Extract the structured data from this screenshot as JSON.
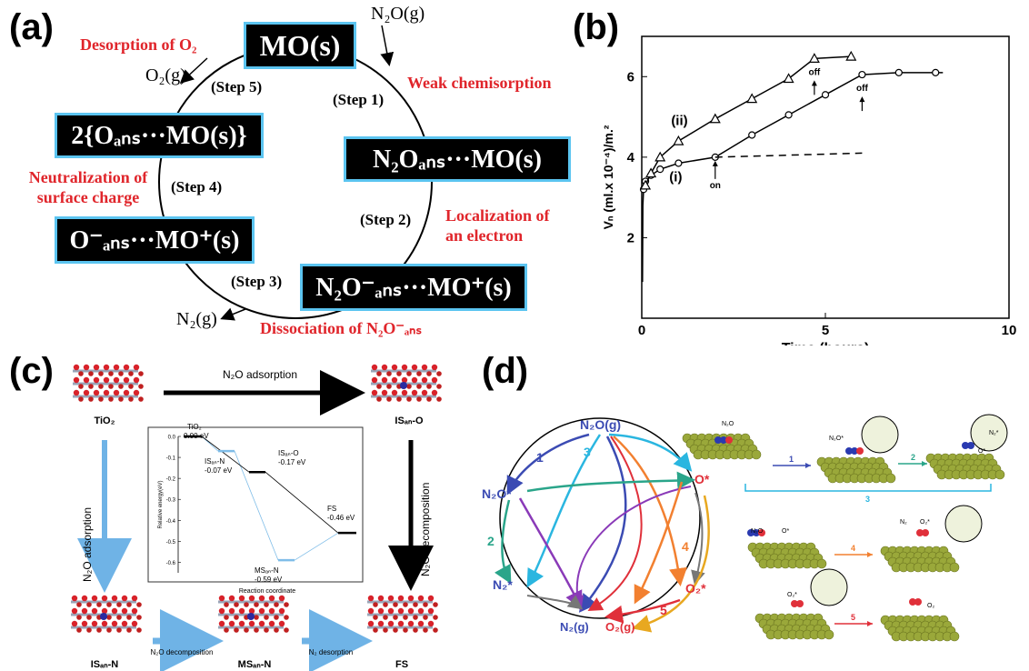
{
  "panels": {
    "a": {
      "label": "(a)",
      "center_box": "MO(s)",
      "box1": "N₂Oₐₙₛ···MO(s)",
      "box2": "N₂O⁻ₐₙₛ···MO⁺(s)",
      "box3": "O⁻ₐₙₛ···MO⁺(s)",
      "box4": "2{Oₐₙₛ···MO(s)}",
      "gas_n2o": "N₂O(g)",
      "gas_o2": "O₂(g)",
      "gas_n2": "N₂(g)",
      "steps": [
        "(Step 1)",
        "(Step 2)",
        "(Step 3)",
        "(Step 4)",
        "(Step 5)"
      ],
      "red_labels": {
        "desorption": "Desorption of O₂",
        "weak": "Weak chemisorption",
        "localization": "Localization of an electron",
        "dissociation": "Dissociation of N₂O⁻ₐₙₛ",
        "neutralization": "Neutralization of surface charge"
      }
    },
    "b": {
      "label": "(b)"
    },
    "c": {
      "label": "(c)",
      "top_arrow": "N₂O adsorption",
      "left_arrow": "N₂O adsorption",
      "right_arrow": "N₂O decomposition",
      "bottom_arrow1": "N₂O decomposition",
      "bottom_arrow2": "N₂ desorption",
      "structures": [
        "TiO₂",
        "ISₐₙ-O",
        "ISₐₙ-N",
        "MSₐₙ-N",
        "FS"
      ],
      "inset": {
        "ylabel": "Relative energy(eV)",
        "xlabel": "Reaction coordinate",
        "yticks": [
          "0.0",
          "-0.1",
          "-0.2",
          "-0.3",
          "-0.4",
          "-0.5",
          "-0.6"
        ],
        "levels": [
          {
            "name": "TiO₂",
            "energy": "0.00 eV",
            "value": 0.0
          },
          {
            "name": "ISₐₙ-N",
            "energy": "-0.07 eV",
            "value": -0.07
          },
          {
            "name": "ISₐₙ-O",
            "energy": "-0.17 eV",
            "value": -0.17
          },
          {
            "name": "MSₐₙ-N",
            "energy": "-0.59 eV",
            "value": -0.59
          },
          {
            "name": "FS",
            "energy": "-0.46 eV",
            "value": -0.46
          }
        ]
      }
    },
    "d": {
      "label": "(d)",
      "nodes": [
        "N₂O(g)",
        "N₂O*",
        "O*",
        "N₂*",
        "O₂*",
        "N₂(g)",
        "O₂(g)"
      ],
      "step_numbers": [
        "1",
        "2",
        "3",
        "4",
        "5"
      ],
      "scene_labels": [
        "N₂O",
        "N₂O*",
        "O*",
        "N₂*",
        "N₂O",
        "O*",
        "N₂",
        "O₂*",
        "O₂*",
        "O₂"
      ]
    }
  },
  "chart_data": {
    "type": "line",
    "xlabel": "Time (hours)",
    "ylabel": "Vₙ (ml.x 10⁻⁴)/m.²",
    "xlim": [
      0,
      10
    ],
    "ylim": [
      0,
      7
    ],
    "xticks": [
      "0",
      "5",
      "10"
    ],
    "yticks": [
      "2",
      "4",
      "6"
    ],
    "series": [
      {
        "name": "(i)",
        "marker": "circle",
        "x": [
          0.05,
          0.1,
          0.25,
          0.5,
          1,
          2,
          3,
          4,
          5,
          6,
          7,
          8
        ],
        "y": [
          3.2,
          3.4,
          3.55,
          3.7,
          3.85,
          4.0,
          4.55,
          5.05,
          5.55,
          6.05,
          6.1,
          6.1
        ]
      },
      {
        "name": "(ii)",
        "marker": "triangle",
        "x": [
          0.1,
          0.25,
          0.5,
          1,
          2,
          3,
          4,
          4.7,
          5.7
        ],
        "y": [
          3.3,
          3.6,
          4.0,
          4.4,
          4.95,
          5.45,
          5.95,
          6.45,
          6.5
        ]
      }
    ],
    "dashed_extrapolation": {
      "x": [
        2,
        6
      ],
      "y": [
        4.0,
        4.1
      ]
    },
    "annotations": [
      {
        "text": "on",
        "x": 2,
        "y": 4.0
      },
      {
        "text": "off",
        "x": 4.7,
        "y": 6.45
      },
      {
        "text": "off",
        "x": 6,
        "y": 6.05
      }
    ]
  }
}
